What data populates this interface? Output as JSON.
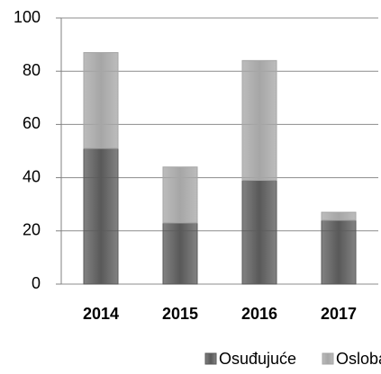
{
  "chart_data": {
    "type": "bar",
    "stacked": true,
    "categories": [
      "2014",
      "2015",
      "2016",
      "2017"
    ],
    "series": [
      {
        "name": "Osuđujuće",
        "color": "#595959",
        "values": [
          51,
          23,
          39,
          24
        ]
      },
      {
        "name": "Oslobađajuće",
        "color": "#a6a6a6",
        "values": [
          36,
          21,
          45,
          3
        ]
      }
    ],
    "ylim": [
      0,
      100
    ],
    "yticks": [
      0,
      20,
      40,
      60,
      80,
      100
    ],
    "grid": true,
    "legend": "bottom"
  }
}
